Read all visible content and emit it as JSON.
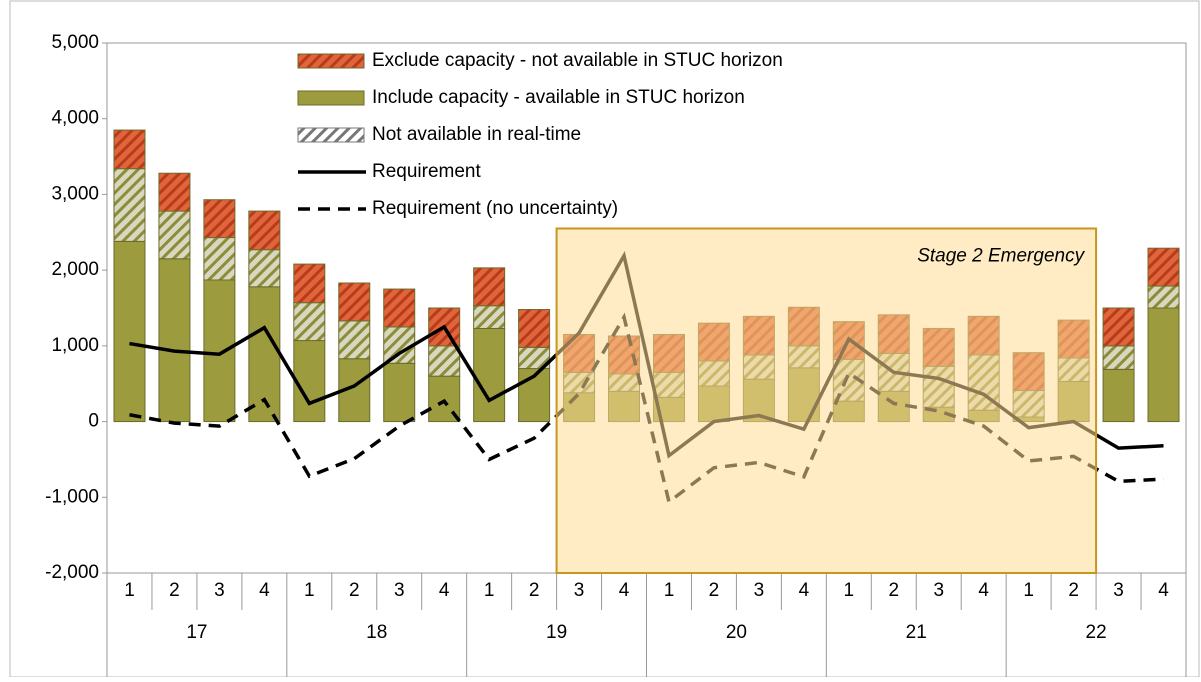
{
  "chart_data": {
    "type": "bar",
    "categories": [
      "1",
      "2",
      "3",
      "4",
      "1",
      "2",
      "3",
      "4",
      "1",
      "2",
      "3",
      "4",
      "1",
      "2",
      "3",
      "4",
      "1",
      "2",
      "3",
      "4",
      "1",
      "2",
      "3",
      "4"
    ],
    "groups": [
      "17",
      "18",
      "19",
      "20",
      "21",
      "22"
    ],
    "series": [
      {
        "name": "Exclude capacity - not available in STUC horizon",
        "color": "#d4522b",
        "hatch": true,
        "values": [
          510,
          500,
          500,
          510,
          510,
          500,
          500,
          500,
          500,
          500,
          500,
          500,
          500,
          500,
          510,
          510,
          500,
          510,
          500,
          510,
          500,
          500,
          500,
          500
        ]
      },
      {
        "name": "Include capacity - available in STUC horizon",
        "color": "#9c9c3e",
        "hatch": false,
        "values": [
          2380,
          2150,
          1870,
          1780,
          1070,
          830,
          770,
          600,
          1230,
          700,
          380,
          400,
          320,
          470,
          560,
          710,
          270,
          400,
          190,
          150,
          60,
          530,
          690,
          1500
        ]
      },
      {
        "name": "Not available in real-time",
        "color": "#9c9c3e",
        "hatch": true,
        "values": [
          960,
          630,
          560,
          490,
          500,
          500,
          480,
          400,
          300,
          280,
          270,
          230,
          330,
          330,
          320,
          290,
          550,
          500,
          540,
          730,
          350,
          310,
          310,
          290
        ]
      },
      {
        "name": "Requirement",
        "color": "#000000",
        "line": "solid",
        "values": [
          1030,
          930,
          890,
          1240,
          240,
          470,
          900,
          1250,
          280,
          600,
          1170,
          2190,
          -450,
          0,
          80,
          -100,
          1090,
          650,
          570,
          360,
          -80,
          0,
          -350,
          -320
        ]
      },
      {
        "name": "Requirement (no uncertainty)",
        "color": "#000000",
        "line": "dashed",
        "values": [
          90,
          -20,
          -60,
          290,
          -720,
          -490,
          -60,
          270,
          -500,
          -220,
          370,
          1380,
          -1060,
          -610,
          -540,
          -730,
          640,
          240,
          140,
          -60,
          -520,
          -460,
          -790,
          -760
        ]
      }
    ],
    "annotation": {
      "text": "Stage 2 Emergency",
      "from": 10,
      "to": 21,
      "top": 2550
    },
    "ylim": [
      -2000,
      5000
    ],
    "yticks": [
      {
        "value": -2000,
        "label": "-2,000"
      },
      {
        "value": -1000,
        "label": "-1,000"
      },
      0,
      {
        "value": 1000,
        "label": "1,000"
      },
      {
        "value": 2000,
        "label": "2,000"
      },
      {
        "value": 3000,
        "label": "3,000"
      },
      {
        "value": 4000,
        "label": "4,000"
      },
      {
        "value": 5000,
        "label": "5,000"
      }
    ],
    "grid": false
  }
}
